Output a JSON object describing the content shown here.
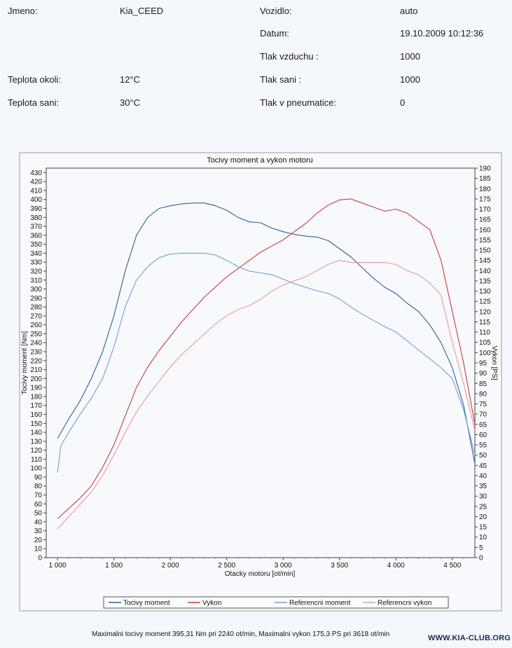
{
  "header": {
    "jmeno_label": "Jmeno:",
    "jmeno_value": "Kia_CEED",
    "vozidlo_label": "Vozidlo:",
    "vozidlo_value": "auto",
    "datum_label": "Datum:",
    "datum_value": "19.10.2009 10:12:36",
    "tlak_vzduchu_label": "Tlak vzduchu :",
    "tlak_vzduchu_value": "1000",
    "teplota_okoli_label": "Teplota okoli:",
    "teplota_okoli_value": "12°C",
    "tlak_sani_label": "Tlak sani :",
    "tlak_sani_value": "1000",
    "teplota_sani_label": "Teplota sani:",
    "teplota_sani_value": "30°C",
    "tlak_pneu_label": "Tlak v pneumatice:",
    "tlak_pneu_value": "0"
  },
  "footer": "Maximalni tocivy moment 395,31 Nm pri 2240 ot/min,  Maximalni vykon 175,3 PS pri 3618 ot/min",
  "watermark": "WWW.KIA-CLUB.ORG",
  "colors": {
    "torque": "#2f5f9e",
    "power": "#cc3b3b",
    "ref_torque": "#6f9fd8",
    "ref_power": "#e89a9a"
  },
  "chart_data": {
    "type": "line",
    "title": "Tocivy moment a vykon motoru",
    "xlabel": "Otacky motoru [ot/min]",
    "ylabel_left": "Tocivy moment [Nm]",
    "ylabel_right": "Vykon [PS]",
    "xlim": [
      900,
      4700
    ],
    "ylim_left": [
      0,
      435
    ],
    "ylim_right": [
      0,
      190
    ],
    "x_ticks": [
      1000,
      1500,
      2000,
      2500,
      3000,
      3500,
      4000,
      4500
    ],
    "x_tick_labels": [
      "1 000",
      "1 500",
      "2 000",
      "2 500",
      "3 000",
      "3 500",
      "4 000",
      "4 500"
    ],
    "y_left_ticks": [
      0,
      10,
      20,
      30,
      40,
      50,
      60,
      70,
      80,
      90,
      100,
      110,
      120,
      130,
      140,
      150,
      160,
      170,
      180,
      190,
      200,
      210,
      220,
      230,
      240,
      250,
      260,
      270,
      280,
      290,
      300,
      310,
      320,
      330,
      340,
      350,
      360,
      370,
      380,
      390,
      400,
      410,
      420,
      430
    ],
    "y_right_ticks": [
      0,
      5,
      10,
      15,
      20,
      25,
      30,
      35,
      40,
      45,
      50,
      55,
      60,
      65,
      70,
      75,
      80,
      85,
      90,
      95,
      100,
      105,
      110,
      115,
      120,
      125,
      130,
      135,
      140,
      145,
      150,
      155,
      160,
      165,
      170,
      175,
      180,
      185,
      190
    ],
    "series": [
      {
        "name": "Tocivy moment",
        "axis": "left",
        "color": "#2f5f9e",
        "x": [
          1000,
          1100,
          1200,
          1300,
          1400,
          1500,
          1600,
          1700,
          1800,
          1900,
          2000,
          2100,
          2200,
          2300,
          2400,
          2500,
          2600,
          2700,
          2800,
          2900,
          3000,
          3100,
          3200,
          3300,
          3400,
          3500,
          3600,
          3700,
          3800,
          3900,
          4000,
          4100,
          4200,
          4300,
          4400,
          4500,
          4600,
          4700
        ],
        "values": [
          133,
          155,
          175,
          200,
          230,
          270,
          320,
          360,
          380,
          390,
          393,
          395,
          396,
          396,
          393,
          388,
          380,
          375,
          374,
          368,
          364,
          361,
          359,
          358,
          354,
          345,
          336,
          324,
          312,
          302,
          295,
          284,
          275,
          260,
          240,
          212,
          170,
          105
        ]
      },
      {
        "name": "Vykon",
        "axis": "right",
        "color": "#cc3b3b",
        "x": [
          1000,
          1100,
          1200,
          1300,
          1400,
          1500,
          1600,
          1700,
          1800,
          1900,
          2000,
          2100,
          2200,
          2300,
          2400,
          2500,
          2600,
          2700,
          2800,
          2900,
          3000,
          3100,
          3200,
          3300,
          3400,
          3500,
          3600,
          3700,
          3800,
          3900,
          4000,
          4100,
          4200,
          4300,
          4400,
          4500,
          4600,
          4700
        ],
        "values": [
          19,
          24,
          29,
          35,
          44,
          55,
          69,
          83,
          93,
          101,
          108,
          115,
          121,
          127,
          132,
          137,
          141,
          145,
          149,
          152,
          155,
          159,
          163,
          168,
          172,
          174.5,
          175,
          173,
          171,
          169,
          170,
          168,
          164,
          160,
          145,
          120,
          95,
          65
        ]
      },
      {
        "name": "Referencni moment",
        "axis": "left",
        "color": "#6f9fd8",
        "x": [
          1000,
          1030,
          1100,
          1200,
          1300,
          1400,
          1500,
          1600,
          1700,
          1800,
          1900,
          2000,
          2100,
          2200,
          2300,
          2400,
          2500,
          2600,
          2700,
          2800,
          2900,
          3000,
          3100,
          3200,
          3300,
          3400,
          3500,
          3600,
          3700,
          3800,
          3900,
          4000,
          4100,
          4200,
          4300,
          4400,
          4500,
          4600,
          4700
        ],
        "values": [
          95,
          125,
          140,
          160,
          178,
          200,
          235,
          280,
          310,
          325,
          335,
          339,
          340,
          340,
          340,
          338,
          332,
          325,
          320,
          318,
          316,
          311,
          306,
          302,
          298,
          295,
          289,
          280,
          272,
          265,
          258,
          252,
          242,
          232,
          222,
          212,
          200,
          165,
          115
        ]
      },
      {
        "name": "Referencni vykon",
        "axis": "right",
        "color": "#e89a9a",
        "x": [
          1000,
          1100,
          1200,
          1300,
          1400,
          1500,
          1600,
          1700,
          1800,
          1900,
          2000,
          2100,
          2200,
          2300,
          2400,
          2500,
          2600,
          2700,
          2800,
          2900,
          3000,
          3100,
          3200,
          3300,
          3400,
          3500,
          3600,
          3700,
          3800,
          3900,
          4000,
          4100,
          4200,
          4300,
          4400,
          4500,
          4600,
          4700
        ],
        "values": [
          14,
          20,
          26,
          32,
          40,
          50,
          61,
          71,
          79,
          86,
          93,
          99,
          104,
          109,
          114,
          118,
          121,
          123,
          126,
          130,
          133,
          135,
          137,
          140,
          143,
          145,
          144,
          144,
          144,
          144,
          143,
          140,
          138,
          134,
          128,
          105,
          85,
          62
        ]
      }
    ],
    "legend": [
      "Tocivy moment",
      "Vykon",
      "Referencni moment",
      "Referencni vykon"
    ]
  }
}
